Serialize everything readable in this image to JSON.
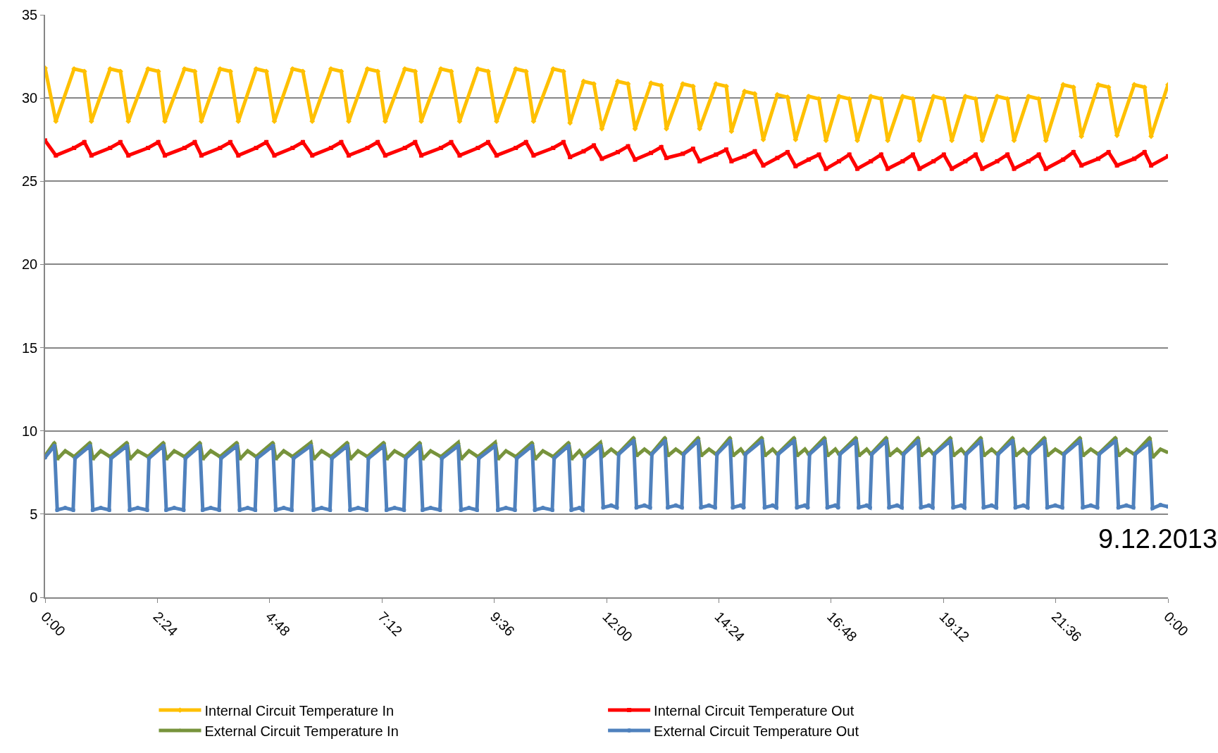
{
  "chart_data": {
    "type": "line",
    "xlim": [
      0,
      24
    ],
    "ylim": [
      0,
      35
    ],
    "xticks": [
      {
        "value": 0,
        "label": "0:00"
      },
      {
        "value": 2.4,
        "label": "2:24"
      },
      {
        "value": 4.8,
        "label": "4:48"
      },
      {
        "value": 7.2,
        "label": "7:12"
      },
      {
        "value": 9.6,
        "label": "9:36"
      },
      {
        "value": 12,
        "label": "12:00"
      },
      {
        "value": 14.4,
        "label": "14:24"
      },
      {
        "value": 16.8,
        "label": "16:48"
      },
      {
        "value": 19.2,
        "label": "19:12"
      },
      {
        "value": 21.6,
        "label": "21:36"
      },
      {
        "value": 24,
        "label": "0:00"
      }
    ],
    "yticks": [
      0,
      5,
      10,
      15,
      20,
      25,
      30,
      35
    ],
    "grid": "y",
    "legend": "bottom",
    "line_style": "solid",
    "annotations": [
      "9.12.2013"
    ],
    "series": [
      {
        "name": "Internal Circuit Temperature In",
        "color": "#ffc000",
        "marker": "diamond",
        "x": [
          0,
          0.23,
          0.62,
          0.84,
          0.99,
          1.39,
          1.61,
          1.78,
          2.2,
          2.42,
          2.56,
          2.98,
          3.2,
          3.34,
          3.74,
          3.96,
          4.13,
          4.51,
          4.73,
          4.9,
          5.29,
          5.51,
          5.71,
          6.11,
          6.33,
          6.49,
          6.89,
          7.11,
          7.27,
          7.69,
          7.91,
          8.04,
          8.46,
          8.68,
          8.86,
          9.25,
          9.47,
          9.65,
          10.06,
          10.28,
          10.44,
          10.86,
          11.08,
          11.22,
          11.51,
          11.73,
          11.9,
          12.24,
          12.46,
          12.61,
          12.95,
          13.17,
          13.28,
          13.63,
          13.85,
          13.99,
          14.34,
          14.56,
          14.67,
          14.95,
          15.17,
          15.35,
          15.65,
          15.87,
          16.04,
          16.32,
          16.54,
          16.69,
          16.97,
          17.19,
          17.36,
          17.65,
          17.87,
          18.01,
          18.33,
          18.55,
          18.69,
          18.99,
          19.21,
          19.38,
          19.67,
          19.89,
          20.03,
          20.35,
          20.57,
          20.71,
          21.02,
          21.24,
          21.39,
          21.76,
          21.98,
          22.15,
          22.51,
          22.73,
          22.91,
          23.28,
          23.5,
          23.64,
          24
        ],
        "values": [
          31.8,
          28.6,
          31.75,
          31.6,
          28.6,
          31.75,
          31.6,
          28.6,
          31.75,
          31.6,
          28.6,
          31.75,
          31.6,
          28.6,
          31.75,
          31.6,
          28.6,
          31.75,
          31.6,
          28.6,
          31.75,
          31.6,
          28.6,
          31.75,
          31.6,
          28.6,
          31.75,
          31.6,
          28.6,
          31.75,
          31.6,
          28.6,
          31.75,
          31.6,
          28.6,
          31.75,
          31.6,
          28.6,
          31.75,
          31.6,
          28.6,
          31.75,
          31.6,
          28.5,
          31.0,
          30.85,
          28.15,
          31.0,
          30.85,
          28.15,
          30.9,
          30.75,
          28.15,
          30.85,
          30.7,
          28.15,
          30.85,
          30.7,
          28.0,
          30.4,
          30.25,
          27.5,
          30.2,
          30.05,
          27.5,
          30.1,
          29.95,
          27.45,
          30.1,
          29.95,
          27.45,
          30.1,
          29.95,
          27.45,
          30.1,
          29.95,
          27.45,
          30.1,
          29.95,
          27.45,
          30.1,
          29.95,
          27.45,
          30.1,
          29.95,
          27.45,
          30.1,
          29.95,
          27.45,
          30.8,
          30.65,
          27.7,
          30.8,
          30.65,
          27.75,
          30.8,
          30.65,
          27.7,
          30.8
        ]
      },
      {
        "name": "Internal Circuit Temperature Out",
        "color": "#ff0000",
        "marker": "square",
        "x": [
          0,
          0.23,
          0.62,
          0.84,
          0.99,
          1.39,
          1.61,
          1.78,
          2.2,
          2.42,
          2.56,
          2.98,
          3.2,
          3.34,
          3.74,
          3.96,
          4.13,
          4.51,
          4.73,
          4.9,
          5.29,
          5.51,
          5.71,
          6.11,
          6.33,
          6.49,
          6.89,
          7.11,
          7.27,
          7.69,
          7.91,
          8.04,
          8.46,
          8.68,
          8.86,
          9.25,
          9.47,
          9.65,
          10.06,
          10.28,
          10.44,
          10.86,
          11.08,
          11.22,
          11.51,
          11.73,
          11.9,
          12.24,
          12.46,
          12.61,
          12.95,
          13.17,
          13.28,
          13.63,
          13.85,
          13.99,
          14.34,
          14.56,
          14.67,
          14.95,
          15.17,
          15.35,
          15.65,
          15.87,
          16.04,
          16.32,
          16.54,
          16.69,
          16.97,
          17.19,
          17.36,
          17.65,
          17.87,
          18.01,
          18.33,
          18.55,
          18.69,
          18.99,
          19.21,
          19.38,
          19.67,
          19.89,
          20.03,
          20.35,
          20.57,
          20.71,
          21.02,
          21.24,
          21.39,
          21.76,
          21.98,
          22.15,
          22.51,
          22.73,
          22.91,
          23.28,
          23.5,
          23.64,
          24
        ],
        "values": [
          27.45,
          26.55,
          27.0,
          27.35,
          26.55,
          27.0,
          27.35,
          26.55,
          27.0,
          27.35,
          26.55,
          27.0,
          27.35,
          26.55,
          27.0,
          27.35,
          26.55,
          27.0,
          27.35,
          26.55,
          27.0,
          27.35,
          26.55,
          27.0,
          27.35,
          26.55,
          27.0,
          27.35,
          26.55,
          27.0,
          27.35,
          26.55,
          27.0,
          27.35,
          26.55,
          27.0,
          27.35,
          26.55,
          27.0,
          27.35,
          26.55,
          27.0,
          27.35,
          26.45,
          26.8,
          27.15,
          26.35,
          26.75,
          27.1,
          26.3,
          26.7,
          27.05,
          26.4,
          26.65,
          26.95,
          26.2,
          26.6,
          26.9,
          26.2,
          26.5,
          26.8,
          25.95,
          26.4,
          26.75,
          25.9,
          26.3,
          26.6,
          25.75,
          26.2,
          26.6,
          25.75,
          26.2,
          26.6,
          25.75,
          26.2,
          26.6,
          25.75,
          26.2,
          26.6,
          25.75,
          26.2,
          26.6,
          25.75,
          26.2,
          26.6,
          25.75,
          26.2,
          26.6,
          25.75,
          26.3,
          26.75,
          25.95,
          26.35,
          26.75,
          25.95,
          26.35,
          26.75,
          25.95,
          26.5
        ]
      },
      {
        "name": "External Circuit Temperature In",
        "color": "#77933c",
        "marker": "triangle",
        "x": [
          0,
          0.2,
          0.26,
          0.43,
          0.62,
          0.96,
          1.02,
          1.19,
          1.39,
          1.75,
          1.81,
          1.98,
          2.2,
          2.53,
          2.59,
          2.76,
          2.98,
          3.31,
          3.37,
          3.54,
          3.74,
          4.1,
          4.16,
          4.33,
          4.51,
          4.87,
          4.93,
          5.1,
          5.29,
          5.68,
          5.74,
          5.91,
          6.11,
          6.46,
          6.52,
          6.69,
          6.89,
          7.24,
          7.3,
          7.47,
          7.69,
          8.01,
          8.07,
          8.24,
          8.46,
          8.83,
          8.89,
          9.06,
          9.25,
          9.62,
          9.68,
          9.85,
          10.06,
          10.41,
          10.47,
          10.64,
          10.86,
          11.19,
          11.25,
          11.42,
          11.51,
          11.87,
          11.93,
          12.1,
          12.24,
          12.58,
          12.64,
          12.81,
          12.95,
          13.25,
          13.31,
          13.48,
          13.63,
          13.96,
          14.02,
          14.19,
          14.34,
          14.64,
          14.7,
          14.87,
          14.95,
          15.32,
          15.38,
          15.55,
          15.65,
          16.01,
          16.07,
          16.24,
          16.32,
          16.66,
          16.72,
          16.89,
          16.97,
          17.33,
          17.39,
          17.56,
          17.65,
          17.98,
          18.04,
          18.21,
          18.33,
          18.66,
          18.72,
          18.89,
          18.99,
          19.35,
          19.41,
          19.58,
          19.67,
          20.0,
          20.06,
          20.23,
          20.35,
          20.68,
          20.74,
          20.91,
          21.02,
          21.36,
          21.42,
          21.59,
          21.76,
          22.12,
          22.18,
          22.35,
          22.51,
          22.88,
          22.94,
          23.11,
          23.28,
          23.61,
          23.67,
          23.84,
          24
        ],
        "values": [
          8.5,
          9.3,
          8.3,
          8.8,
          8.45,
          9.3,
          8.3,
          8.8,
          8.45,
          9.3,
          8.3,
          8.8,
          8.45,
          9.3,
          8.3,
          8.8,
          8.45,
          9.3,
          8.3,
          8.8,
          8.45,
          9.3,
          8.3,
          8.8,
          8.45,
          9.3,
          8.3,
          8.8,
          8.45,
          9.3,
          8.3,
          8.8,
          8.45,
          9.3,
          8.3,
          8.8,
          8.45,
          9.3,
          8.3,
          8.8,
          8.45,
          9.3,
          8.3,
          8.8,
          8.45,
          9.3,
          8.3,
          8.8,
          8.45,
          9.3,
          8.3,
          8.8,
          8.45,
          9.3,
          8.3,
          8.8,
          8.45,
          9.3,
          8.3,
          8.8,
          8.45,
          9.3,
          8.5,
          8.9,
          8.6,
          9.6,
          8.5,
          8.9,
          8.6,
          9.6,
          8.5,
          8.9,
          8.6,
          9.6,
          8.5,
          8.9,
          8.6,
          9.6,
          8.5,
          8.9,
          8.6,
          9.6,
          8.5,
          8.9,
          8.6,
          9.6,
          8.5,
          8.9,
          8.6,
          9.6,
          8.5,
          8.9,
          8.6,
          9.6,
          8.5,
          8.9,
          8.6,
          9.6,
          8.5,
          8.9,
          8.6,
          9.6,
          8.5,
          8.9,
          8.6,
          9.6,
          8.5,
          8.9,
          8.6,
          9.6,
          8.5,
          8.9,
          8.6,
          9.6,
          8.5,
          8.9,
          8.6,
          9.6,
          8.5,
          8.9,
          8.6,
          9.6,
          8.5,
          8.9,
          8.6,
          9.6,
          8.5,
          8.9,
          8.6,
          9.6,
          8.4,
          8.9,
          8.7
        ]
      },
      {
        "name": "External Circuit Temperature Out",
        "color": "#4f81bd",
        "marker": "circle",
        "x": [
          0,
          0.2,
          0.26,
          0.43,
          0.6,
          0.64,
          0.96,
          1.02,
          1.19,
          1.37,
          1.41,
          1.75,
          1.81,
          1.98,
          2.18,
          2.22,
          2.53,
          2.59,
          2.76,
          2.96,
          3.0,
          3.31,
          3.37,
          3.54,
          3.72,
          3.76,
          4.1,
          4.16,
          4.33,
          4.49,
          4.53,
          4.87,
          4.93,
          5.1,
          5.27,
          5.31,
          5.68,
          5.74,
          5.91,
          6.09,
          6.13,
          6.46,
          6.52,
          6.69,
          6.87,
          6.91,
          7.24,
          7.3,
          7.47,
          7.67,
          7.71,
          8.01,
          8.07,
          8.24,
          8.44,
          8.48,
          8.83,
          8.89,
          9.06,
          9.23,
          9.27,
          9.62,
          9.68,
          9.85,
          10.04,
          10.08,
          10.41,
          10.47,
          10.64,
          10.84,
          10.88,
          11.19,
          11.25,
          11.42,
          11.49,
          11.53,
          11.87,
          11.93,
          12.1,
          12.22,
          12.26,
          12.58,
          12.64,
          12.81,
          12.93,
          12.97,
          13.25,
          13.31,
          13.48,
          13.61,
          13.65,
          13.96,
          14.02,
          14.19,
          14.32,
          14.36,
          14.64,
          14.7,
          14.87,
          14.93,
          14.97,
          15.32,
          15.38,
          15.55,
          15.63,
          15.67,
          16.01,
          16.07,
          16.24,
          16.3,
          16.34,
          16.66,
          16.72,
          16.89,
          16.95,
          16.99,
          17.33,
          17.39,
          17.56,
          17.63,
          17.67,
          17.98,
          18.04,
          18.21,
          18.31,
          18.35,
          18.66,
          18.72,
          18.89,
          18.97,
          19.01,
          19.35,
          19.41,
          19.58,
          19.65,
          19.69,
          20.0,
          20.06,
          20.23,
          20.33,
          20.37,
          20.68,
          20.74,
          20.91,
          21.0,
          21.04,
          21.36,
          21.42,
          21.59,
          21.74,
          21.78,
          22.12,
          22.18,
          22.35,
          22.49,
          22.53,
          22.88,
          22.94,
          23.11,
          23.26,
          23.3,
          23.61,
          23.67,
          23.84,
          24
        ],
        "values": [
          8.4,
          9.1,
          5.25,
          5.37,
          5.25,
          8.35,
          9.1,
          5.25,
          5.37,
          5.25,
          8.35,
          9.1,
          5.25,
          5.37,
          5.25,
          8.35,
          9.1,
          5.25,
          5.37,
          5.25,
          8.35,
          9.1,
          5.25,
          5.37,
          5.25,
          8.35,
          9.1,
          5.25,
          5.37,
          5.25,
          8.35,
          9.1,
          5.25,
          5.37,
          5.25,
          8.35,
          9.1,
          5.25,
          5.37,
          5.25,
          8.35,
          9.1,
          5.25,
          5.37,
          5.25,
          8.35,
          9.1,
          5.25,
          5.37,
          5.25,
          8.35,
          9.1,
          5.25,
          5.37,
          5.25,
          8.35,
          9.1,
          5.25,
          5.37,
          5.25,
          8.35,
          9.1,
          5.25,
          5.37,
          5.25,
          8.35,
          9.1,
          5.25,
          5.37,
          5.25,
          8.35,
          9.1,
          5.25,
          5.37,
          5.25,
          8.35,
          9.1,
          5.4,
          5.52,
          5.4,
          8.6,
          9.4,
          5.4,
          5.52,
          5.4,
          8.6,
          9.4,
          5.4,
          5.52,
          5.4,
          8.6,
          9.4,
          5.4,
          5.52,
          5.4,
          8.6,
          9.4,
          5.4,
          5.52,
          5.4,
          8.6,
          9.4,
          5.4,
          5.52,
          5.4,
          8.6,
          9.4,
          5.4,
          5.52,
          5.4,
          8.6,
          9.4,
          5.4,
          5.52,
          5.4,
          8.6,
          9.4,
          5.4,
          5.52,
          5.4,
          8.6,
          9.4,
          5.4,
          5.52,
          5.4,
          8.6,
          9.4,
          5.4,
          5.52,
          5.4,
          8.6,
          9.4,
          5.4,
          5.52,
          5.4,
          8.6,
          9.4,
          5.4,
          5.52,
          5.4,
          8.6,
          9.4,
          5.4,
          5.52,
          5.4,
          8.6,
          9.4,
          5.4,
          5.52,
          5.4,
          8.6,
          9.4,
          5.4,
          5.52,
          5.4,
          8.6,
          9.4,
          5.4,
          5.52,
          5.4,
          8.6,
          9.3,
          5.35,
          5.55,
          5.45
        ]
      }
    ]
  }
}
